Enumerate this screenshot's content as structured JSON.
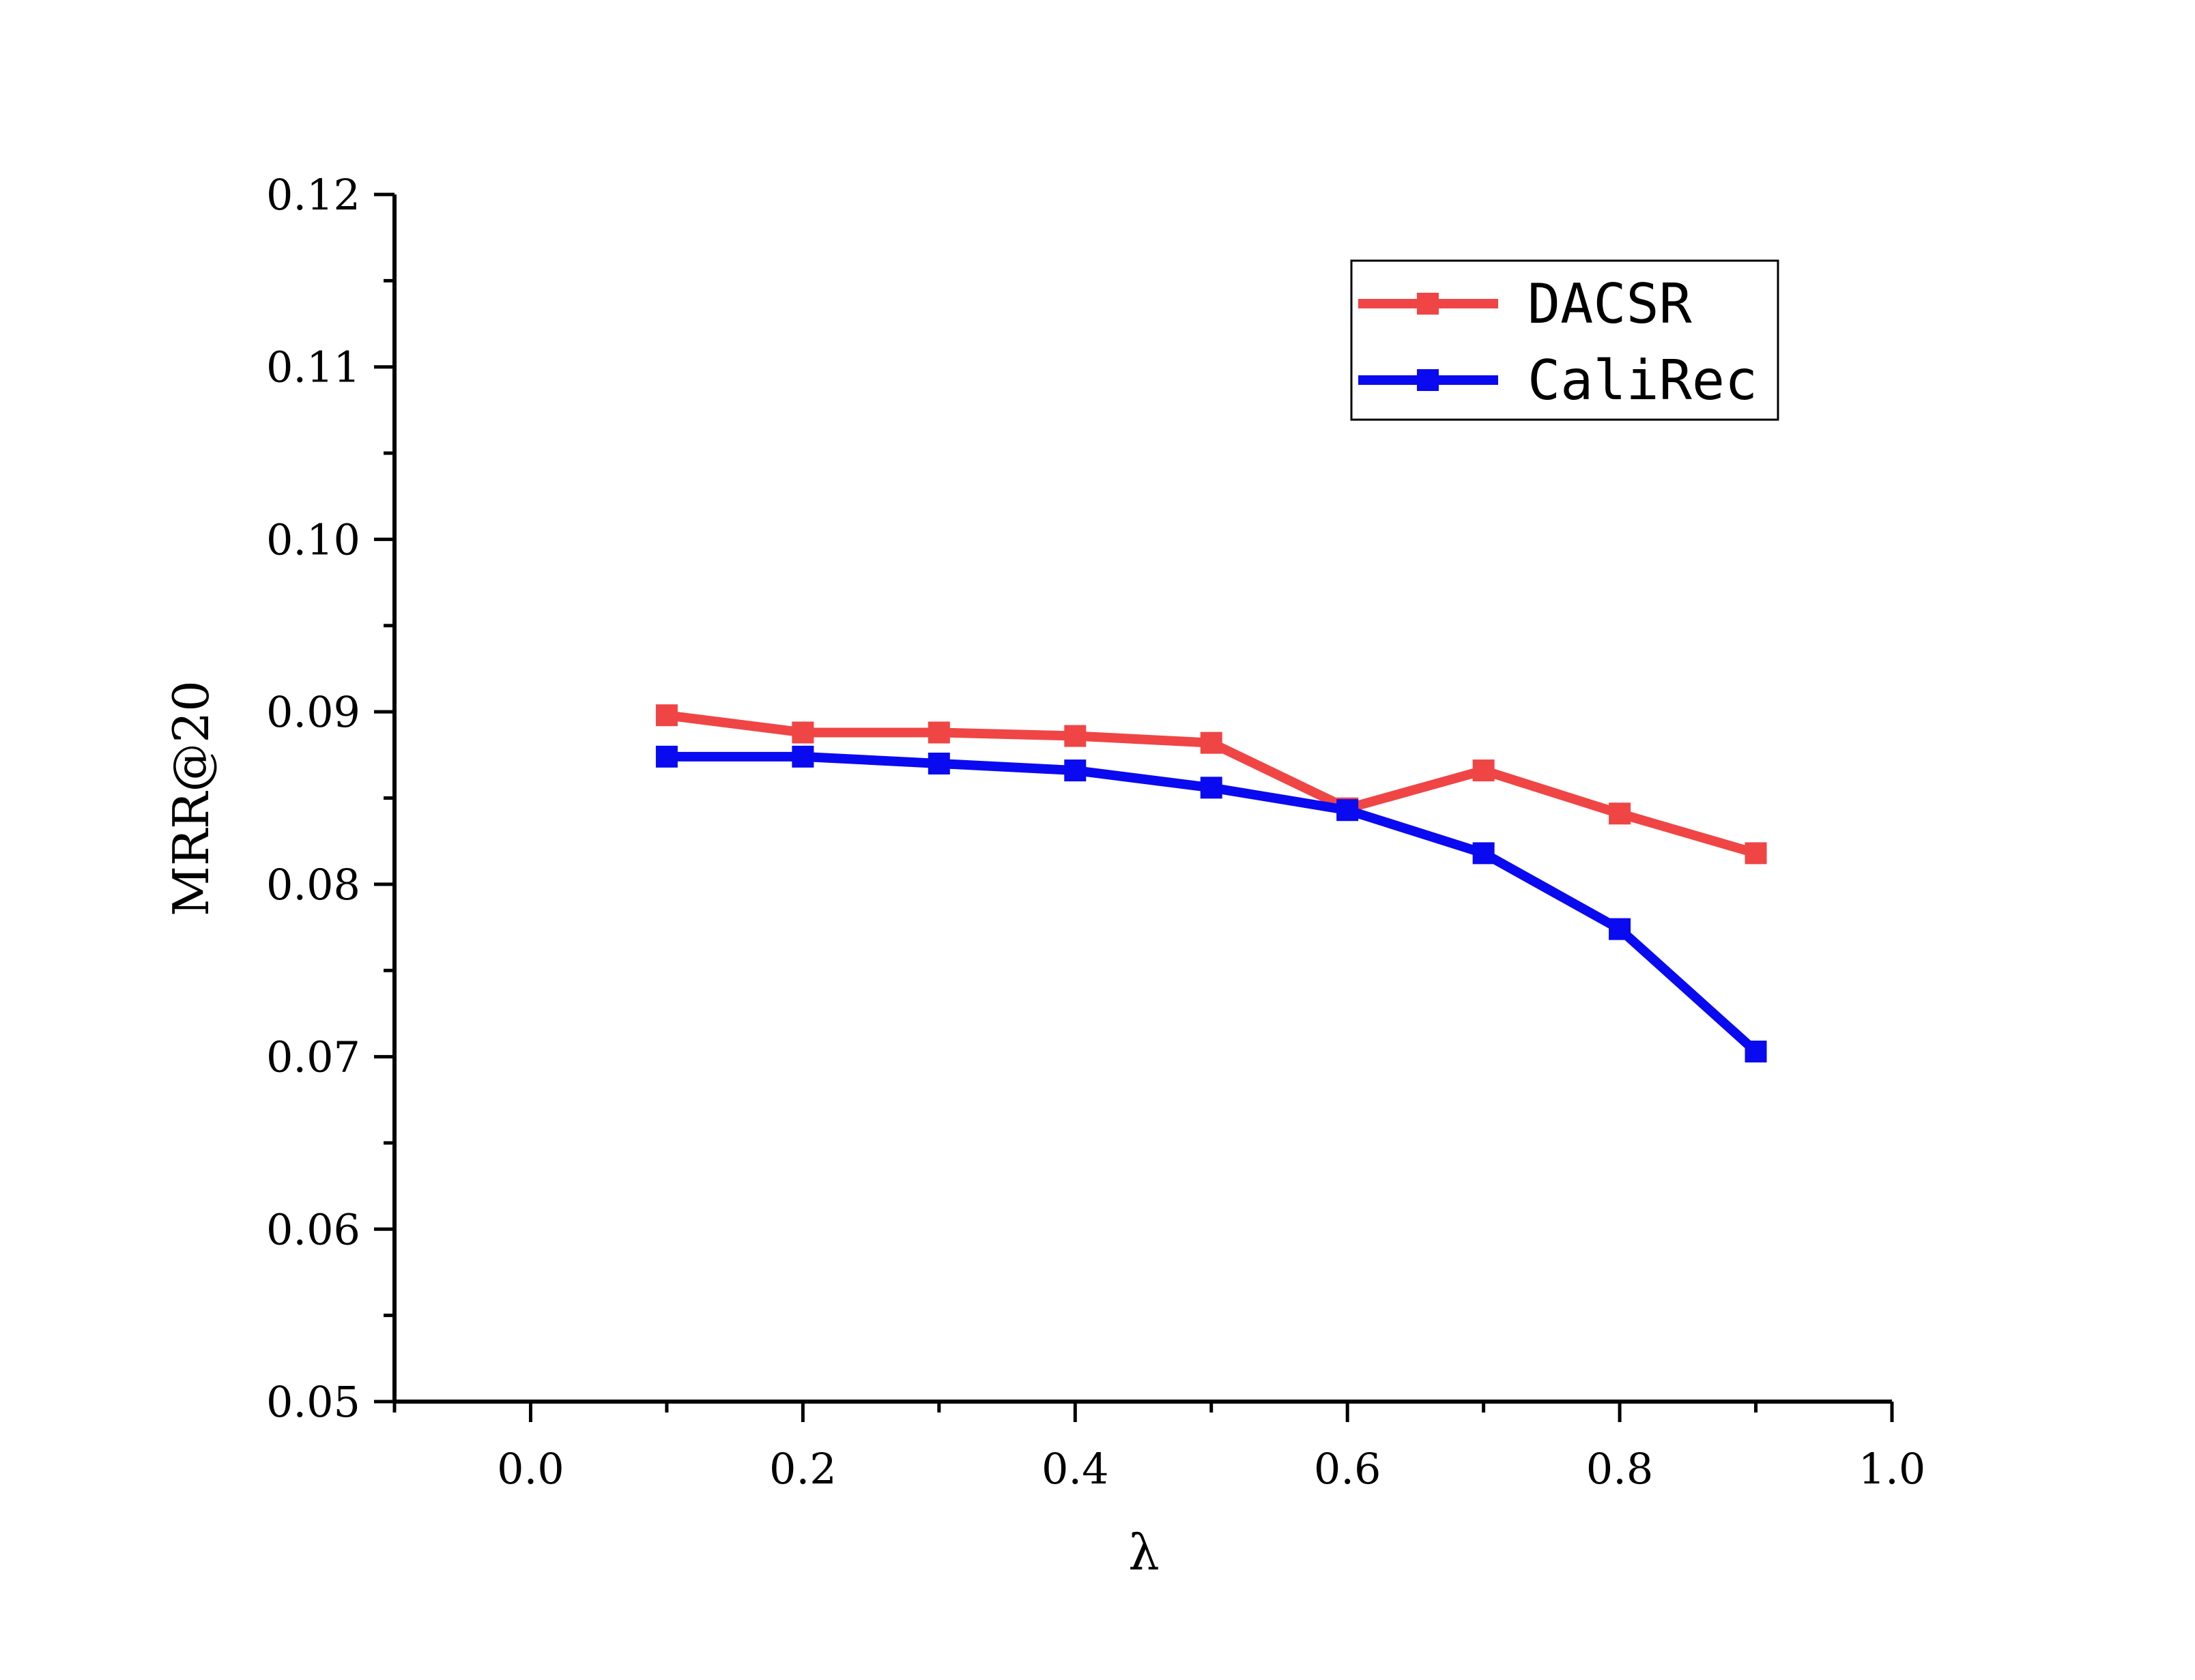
{
  "chart_data": {
    "type": "line",
    "title": "",
    "xlabel": "λ",
    "ylabel": "MRR@20",
    "xlim": [
      -0.1,
      1.0
    ],
    "ylim": [
      0.05,
      0.12
    ],
    "x_ticks": [
      0.0,
      0.2,
      0.4,
      0.6,
      0.8,
      1.0
    ],
    "x_tick_labels": [
      "0.0",
      "0.2",
      "0.4",
      "0.6",
      "0.8",
      "1.0"
    ],
    "y_ticks": [
      0.05,
      0.06,
      0.07,
      0.08,
      0.09,
      0.1,
      0.11,
      0.12
    ],
    "y_tick_labels": [
      "0.05",
      "0.06",
      "0.07",
      "0.08",
      "0.09",
      "0.10",
      "0.11",
      "0.12"
    ],
    "grid": false,
    "legend_position": "top-right",
    "x": [
      0.1,
      0.2,
      0.3,
      0.4,
      0.5,
      0.6,
      0.7,
      0.8,
      0.9
    ],
    "series": [
      {
        "name": "DACSR",
        "color": "#f04545",
        "marker": "square",
        "values": [
          0.0898,
          0.0888,
          0.0888,
          0.0886,
          0.0882,
          0.0844,
          0.0866,
          0.0841,
          0.0818
        ]
      },
      {
        "name": "CaliRec",
        "color": "#0a0af0",
        "marker": "square",
        "values": [
          0.0874,
          0.0874,
          0.087,
          0.0866,
          0.0856,
          0.0843,
          0.0818,
          0.0774,
          0.0703
        ]
      }
    ]
  }
}
